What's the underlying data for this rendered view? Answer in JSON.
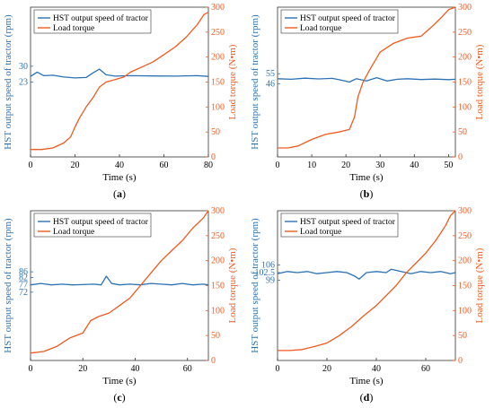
{
  "colors": {
    "speed": "#2a72b5",
    "torque": "#f05a1e",
    "axis": "#333333"
  },
  "chart_data": [
    {
      "type": "line",
      "panel_label": "a",
      "xlabel": "Time (s)",
      "ylabel_left": "HST output speed of tractor (rpm)",
      "ylabel_right": "Load torque (N•m)",
      "xlim": [
        0,
        80
      ],
      "ylim_left": [
        -10,
        56
      ],
      "ylim_right": [
        0,
        300
      ],
      "x_ticks": [
        0,
        20,
        40,
        60,
        80
      ],
      "left_ticks": [
        23,
        30
      ],
      "right_ticks": [
        0,
        50,
        100,
        150,
        200,
        250,
        300
      ],
      "legend": [
        "HST output speed of tractor",
        "Load torque"
      ],
      "series": [
        {
          "name": "HST output speed of tractor",
          "axis": "left",
          "x": [
            0,
            3,
            6,
            10,
            15,
            20,
            25,
            28,
            31,
            34,
            38,
            45,
            55,
            65,
            75,
            80
          ],
          "y": [
            25.5,
            27.4,
            25.8,
            26.0,
            25.2,
            24.8,
            25.0,
            27.0,
            28.7,
            26.2,
            25.6,
            25.8,
            25.7,
            25.6,
            25.8,
            25.5
          ]
        },
        {
          "name": "Load torque",
          "axis": "right",
          "x": [
            0,
            5,
            10,
            15,
            18,
            20,
            22,
            25,
            28,
            31,
            34,
            38,
            42,
            45,
            50,
            55,
            60,
            65,
            70,
            75,
            78,
            80
          ],
          "y": [
            15,
            15,
            18,
            28,
            40,
            60,
            78,
            100,
            118,
            140,
            150,
            155,
            160,
            170,
            180,
            190,
            205,
            220,
            240,
            265,
            285,
            290
          ]
        }
      ]
    },
    {
      "type": "line",
      "panel_label": "b",
      "xlabel": "Time (s)",
      "ylabel_left": "HST output speed of tractor (rpm)",
      "ylabel_right": "Load torque (N•m)",
      "xlim": [
        0,
        52
      ],
      "ylim_left": [
        -20,
        115
      ],
      "ylim_right": [
        0,
        300
      ],
      "x_ticks": [
        0,
        10,
        20,
        30,
        40,
        50
      ],
      "left_ticks": [
        46,
        55
      ],
      "right_ticks": [
        0,
        50,
        100,
        150,
        200,
        250,
        300
      ],
      "legend": [
        "HST output speed of tractor",
        "Load torque"
      ],
      "series": [
        {
          "name": "HST output speed of tractor",
          "axis": "left",
          "x": [
            0,
            4,
            8,
            12,
            16,
            19,
            21,
            23,
            26,
            29,
            32,
            35,
            38,
            42,
            46,
            50,
            52
          ],
          "y": [
            50.5,
            50.0,
            51.0,
            50.3,
            50.8,
            49.0,
            47.5,
            50.5,
            48.5,
            51.5,
            48.5,
            50.0,
            50.5,
            49.8,
            50.2,
            49.7,
            50.0
          ]
        },
        {
          "name": "Load torque",
          "axis": "right",
          "x": [
            0,
            3,
            6,
            10,
            14,
            18,
            21,
            22.5,
            23.5,
            25,
            27,
            30,
            34,
            38,
            42,
            45,
            48,
            50,
            52
          ],
          "y": [
            18,
            18,
            22,
            35,
            45,
            50,
            55,
            80,
            120,
            150,
            175,
            210,
            228,
            238,
            242,
            260,
            280,
            295,
            300
          ]
        }
      ]
    },
    {
      "type": "line",
      "panel_label": "c",
      "xlabel": "Time (s)",
      "ylabel_left": "HST output speed of tractor (rpm)",
      "ylabel_right": "Load torque (N•m)",
      "xlim": [
        0,
        68
      ],
      "ylim_left": [
        25,
        128
      ],
      "ylim_right": [
        0,
        300
      ],
      "x_ticks": [
        0,
        20,
        40,
        60
      ],
      "left_ticks": [
        72,
        77,
        82,
        86
      ],
      "right_ticks": [
        0,
        50,
        100,
        150,
        200,
        250,
        300
      ],
      "legend": [
        "HST output speed of tractor",
        "Load torque"
      ],
      "series": [
        {
          "name": "HST output speed of tractor",
          "axis": "left",
          "x": [
            0,
            4,
            8,
            12,
            16,
            20,
            24,
            27,
            29,
            31,
            34,
            38,
            42,
            46,
            50,
            54,
            58,
            62,
            66,
            68
          ],
          "y": [
            77,
            78,
            77,
            77.5,
            77,
            77.2,
            77.5,
            77,
            83,
            78,
            77,
            77.5,
            77,
            78,
            77.5,
            77,
            78,
            77,
            77.5,
            77
          ]
        },
        {
          "name": "Load torque",
          "axis": "right",
          "x": [
            0,
            5,
            10,
            15,
            20,
            23,
            26,
            30,
            34,
            38,
            42,
            46,
            50,
            54,
            58,
            62,
            66,
            68
          ],
          "y": [
            15,
            18,
            28,
            45,
            55,
            80,
            88,
            95,
            110,
            125,
            150,
            175,
            200,
            220,
            240,
            265,
            285,
            300
          ]
        }
      ]
    },
    {
      "type": "line",
      "panel_label": "d",
      "xlabel": "Time (s)",
      "ylabel_left": "HST output speed of tractor (rpm)",
      "ylabel_right": "Load torque (N•m)",
      "xlim": [
        0,
        72
      ],
      "ylim_left": [
        62,
        131
      ],
      "ylim_right": [
        0,
        300
      ],
      "x_ticks": [
        0,
        20,
        40,
        60
      ],
      "left_ticks": [
        99,
        102.5,
        106
      ],
      "right_ticks": [
        0,
        50,
        100,
        150,
        200,
        250,
        300
      ],
      "legend": [
        "HST output speed of tractor",
        "Load torque"
      ],
      "series": [
        {
          "name": "HST output speed of tractor",
          "axis": "left",
          "x": [
            0,
            4,
            8,
            12,
            16,
            20,
            24,
            28,
            31,
            33,
            36,
            40,
            44,
            46,
            50,
            54,
            58,
            62,
            66,
            70,
            72
          ],
          "y": [
            102,
            103,
            102.5,
            103,
            102,
            102.5,
            103,
            102.5,
            101,
            99.5,
            102.5,
            103,
            102.5,
            104,
            103,
            102,
            103,
            102.5,
            103,
            102,
            102.5
          ]
        },
        {
          "name": "Load torque",
          "axis": "right",
          "x": [
            0,
            5,
            10,
            15,
            20,
            25,
            30,
            35,
            40,
            45,
            48,
            52,
            56,
            60,
            64,
            68,
            70,
            72
          ],
          "y": [
            20,
            20,
            22,
            28,
            35,
            50,
            68,
            90,
            110,
            135,
            150,
            175,
            195,
            215,
            240,
            270,
            290,
            300
          ]
        }
      ]
    }
  ]
}
